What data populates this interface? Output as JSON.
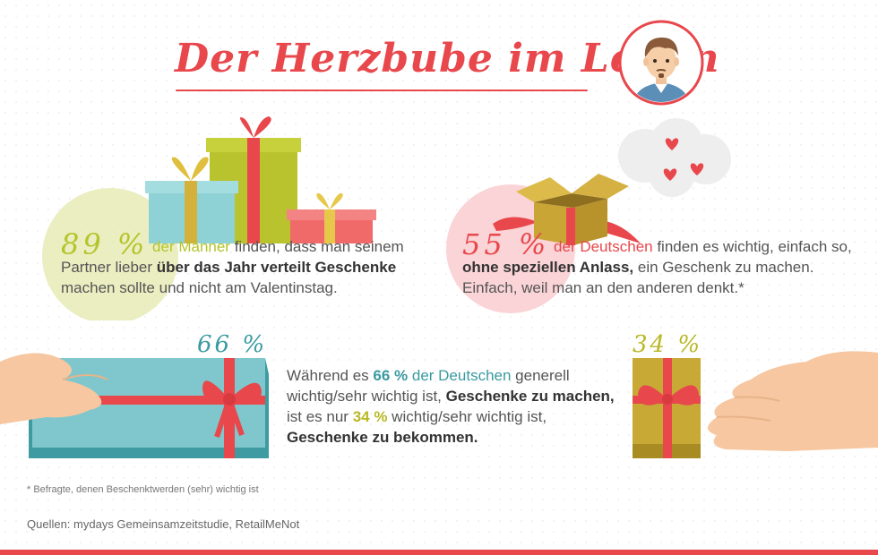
{
  "title": "Der Herzbube im Leben",
  "colors": {
    "accent_red": "#e8474c",
    "green": "#b5c42a",
    "teal": "#3a9aa0",
    "olive": "#b9b825",
    "text": "#555555"
  },
  "icons": [
    "man-avatar-icon",
    "gift-boxes-icon",
    "open-box-icon",
    "thought-bubble-hearts-icon",
    "hand-giving-gift-icon",
    "hand-receiving-gift-icon"
  ],
  "stat1": {
    "pct": "89 %",
    "subject": "der Männer",
    "t1": " finden, dass man seinem Partner lieber ",
    "bold": "über das Jahr verteilt Geschenke",
    "t2": " machen sollte und nicht am Valentinstag."
  },
  "stat2": {
    "pct": "55 %",
    "subject": "der Deutschen",
    "t1": " finden es wichtig, einfach so, ",
    "bold": "ohne speziellen Anlass,",
    "t2": " ein Geschenk zu machen. Einfach, weil man an den anderen denkt.*"
  },
  "stat3": {
    "label_give": "66 %",
    "label_receive": "34 %",
    "t1": "Während es ",
    "p1": "66 %",
    "subj": " der Deutschen",
    "t2": " generell wichtig/sehr wichtig ist, ",
    "b1": "Geschenke zu machen,",
    "t3": " ist es nur ",
    "p2": "34 %",
    "t4": " wichtig/sehr wichtig ist, ",
    "b2": "Geschenke zu bekommen."
  },
  "footnote": "* Befragte, denen Beschenktwerden (sehr) wichtig ist",
  "sources": "Quellen: mydays Gemeinsamzeitstudie, RetailMeNot"
}
